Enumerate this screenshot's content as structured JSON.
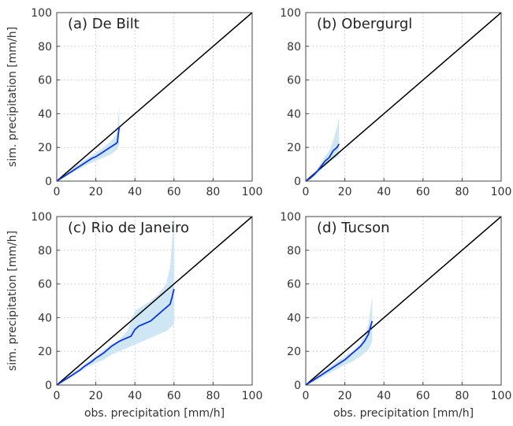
{
  "chart_data": [
    {
      "type": "line",
      "title": "(a) De Bilt",
      "xlabel": "",
      "ylabel": "sim. precipitation [mm/h]",
      "xlim": [
        0,
        100
      ],
      "ylim": [
        0,
        100
      ],
      "xticks": [
        "0",
        "20",
        "40",
        "60",
        "80",
        "100"
      ],
      "yticks": [
        "0",
        "20",
        "40",
        "60",
        "80",
        "100"
      ],
      "grid": true,
      "reference_line": [
        [
          0,
          0
        ],
        [
          100,
          100
        ]
      ],
      "series": [
        {
          "x": [
            0,
            2,
            4,
            6,
            8,
            10,
            12,
            14,
            16,
            18,
            20,
            22,
            24,
            26,
            28,
            30,
            31,
            31.5,
            32
          ],
          "y": [
            0,
            1.5,
            3,
            4.5,
            6,
            7.5,
            9,
            10.5,
            12,
            13.5,
            14.5,
            16,
            17.5,
            19,
            20.5,
            22,
            23,
            28,
            32
          ]
        }
      ],
      "band": {
        "x": [
          0,
          4,
          8,
          12,
          16,
          20,
          24,
          28,
          30,
          31,
          32
        ],
        "lower": [
          0,
          2.5,
          5,
          7.5,
          10,
          12,
          14,
          16,
          18,
          19,
          22
        ],
        "upper": [
          0,
          4,
          7.5,
          11,
          14,
          17,
          20,
          24,
          27,
          30,
          45
        ]
      }
    },
    {
      "type": "line",
      "title": "(b) Obergurgl",
      "xlabel": "",
      "ylabel": "",
      "xlim": [
        0,
        100
      ],
      "ylim": [
        0,
        100
      ],
      "xticks": [
        "0",
        "20",
        "40",
        "60",
        "80",
        "100"
      ],
      "yticks": [
        "0",
        "20",
        "40",
        "60",
        "80",
        "100"
      ],
      "grid": true,
      "reference_line": [
        [
          0,
          0
        ],
        [
          100,
          100
        ]
      ],
      "series": [
        {
          "x": [
            0,
            2,
            4,
            6,
            8,
            10,
            12,
            14,
            16,
            17
          ],
          "y": [
            0,
            1.5,
            3.5,
            6,
            9,
            12,
            14,
            18,
            20,
            22
          ]
        }
      ],
      "band": {
        "x": [
          0,
          2,
          4,
          6,
          8,
          10,
          12,
          14,
          16,
          17
        ],
        "lower": [
          0,
          1,
          2.5,
          4.5,
          7,
          9,
          11,
          13,
          14,
          15
        ],
        "upper": [
          0,
          2,
          4.5,
          7.5,
          11,
          15,
          18,
          24,
          32,
          38
        ]
      }
    },
    {
      "type": "line",
      "title": "(c) Rio de Janeiro",
      "xlabel": "obs. precipitation [mm/h]",
      "ylabel": "sim. precipitation [mm/h]",
      "xlim": [
        0,
        100
      ],
      "ylim": [
        0,
        100
      ],
      "xticks": [
        "0",
        "20",
        "40",
        "60",
        "80",
        "100"
      ],
      "yticks": [
        "0",
        "20",
        "40",
        "60",
        "80",
        "100"
      ],
      "grid": true,
      "reference_line": [
        [
          0,
          0
        ],
        [
          100,
          100
        ]
      ],
      "series": [
        {
          "x": [
            0,
            2,
            4,
            6,
            8,
            10,
            12,
            14,
            16,
            18,
            20,
            22,
            24,
            26,
            28,
            30,
            32,
            34,
            36,
            38,
            39,
            40,
            42,
            44,
            46,
            48,
            50,
            52,
            54,
            56,
            58,
            59,
            60
          ],
          "y": [
            0,
            1.5,
            3,
            4.5,
            6,
            7.5,
            9,
            11,
            12.5,
            14,
            16,
            17.5,
            19,
            21,
            23,
            24.5,
            26,
            27,
            28,
            29,
            31,
            33,
            35,
            36,
            37,
            38,
            40,
            42,
            44,
            46,
            48,
            52,
            57
          ]
        }
      ],
      "band": {
        "x": [
          0,
          4,
          8,
          12,
          16,
          20,
          24,
          28,
          32,
          36,
          40,
          44,
          48,
          52,
          56,
          58,
          59,
          60
        ],
        "lower": [
          0,
          2.5,
          5,
          8,
          11,
          13,
          15,
          18,
          20,
          22,
          24,
          26,
          28,
          30,
          32,
          34,
          35,
          36
        ],
        "upper": [
          0,
          3.5,
          7,
          10,
          14,
          17,
          21,
          24,
          27,
          32,
          44,
          47,
          50,
          54,
          60,
          70,
          85,
          100
        ]
      }
    },
    {
      "type": "line",
      "title": "(d) Tucson",
      "xlabel": "obs. precipitation [mm/h]",
      "ylabel": "",
      "xlim": [
        0,
        100
      ],
      "ylim": [
        0,
        100
      ],
      "xticks": [
        "0",
        "20",
        "40",
        "60",
        "80",
        "100"
      ],
      "yticks": [
        "0",
        "20",
        "40",
        "60",
        "80",
        "100"
      ],
      "grid": true,
      "reference_line": [
        [
          0,
          0
        ],
        [
          100,
          100
        ]
      ],
      "series": [
        {
          "x": [
            0,
            2,
            4,
            6,
            8,
            10,
            12,
            14,
            16,
            18,
            20,
            22,
            24,
            26,
            28,
            30,
            32,
            33,
            34
          ],
          "y": [
            0,
            1.5,
            3,
            4.5,
            6,
            7.5,
            9,
            10.5,
            12,
            13.5,
            15,
            17,
            19,
            21,
            23,
            26,
            30,
            34,
            38
          ]
        }
      ],
      "band": {
        "x": [
          0,
          4,
          8,
          12,
          16,
          20,
          24,
          28,
          30,
          32,
          33,
          34
        ],
        "lower": [
          0,
          2,
          4.5,
          7,
          9.5,
          12,
          14,
          17,
          19,
          21,
          23,
          26
        ],
        "upper": [
          0,
          3.5,
          7,
          10.5,
          14,
          17,
          20,
          25,
          29,
          36,
          44,
          53
        ]
      }
    }
  ],
  "colors": {
    "series": "#0a36e6",
    "band": "#cfe6f5",
    "reference": "#000000",
    "grid": "#c8c8c8",
    "axes": "#444444"
  }
}
